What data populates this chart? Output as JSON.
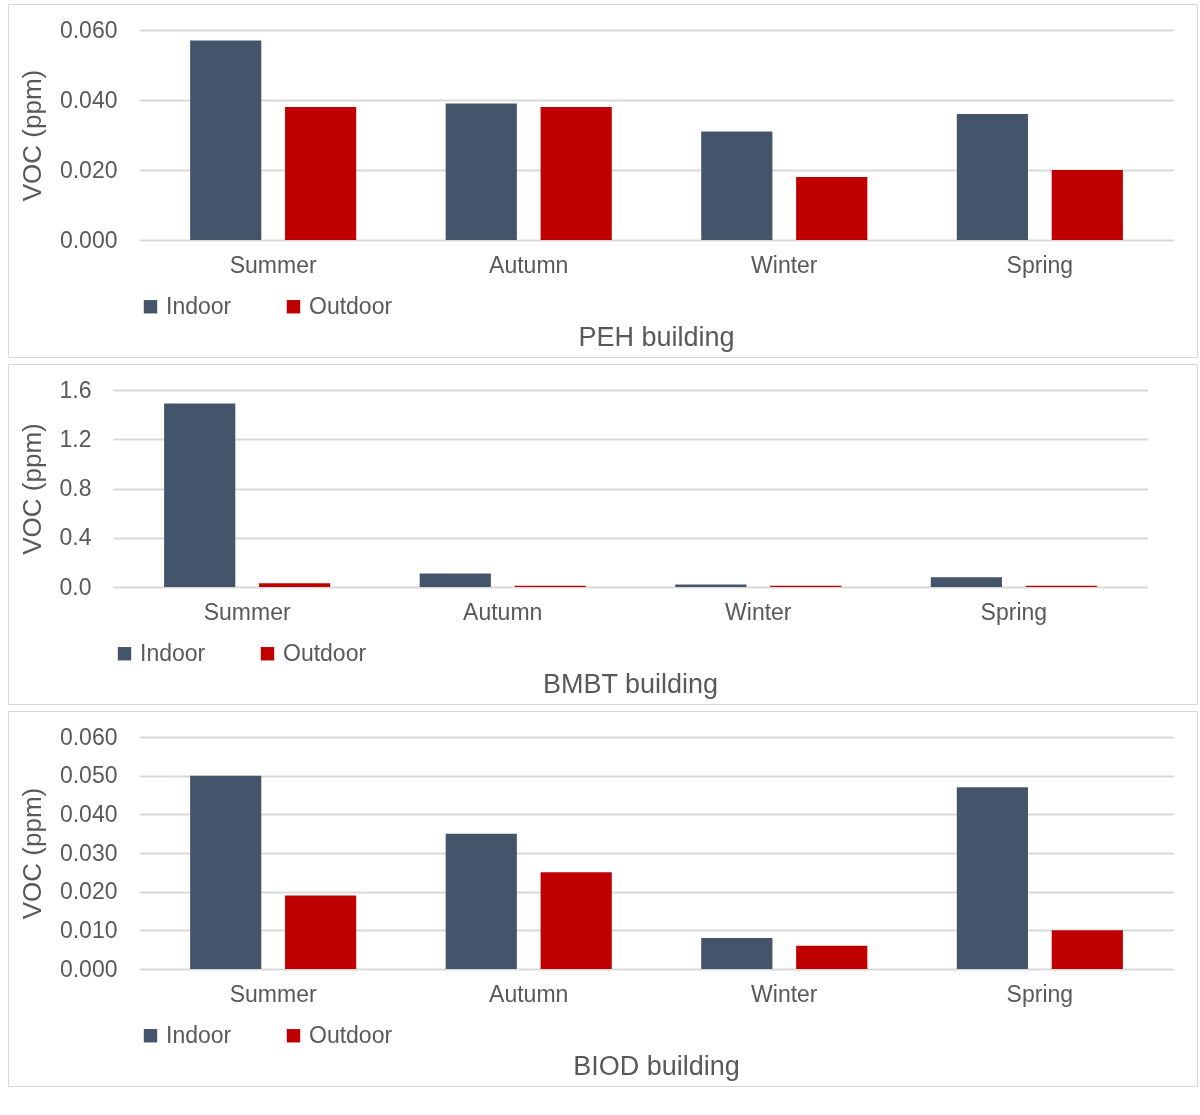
{
  "chart_data": [
    {
      "type": "bar",
      "title": "PEH building",
      "ylabel": "VOC (ppm)",
      "categories": [
        "Summer",
        "Autumn",
        "Winter",
        "Spring"
      ],
      "series": [
        {
          "name": "Indoor",
          "color": "#44546a",
          "values": [
            0.057,
            0.039,
            0.031,
            0.036
          ]
        },
        {
          "name": "Outdoor",
          "color": "#c00000",
          "values": [
            0.038,
            0.038,
            0.018,
            0.02
          ]
        }
      ],
      "ylim": [
        0,
        0.06
      ],
      "yticks": [
        {
          "value": 0,
          "label": "0.000"
        },
        {
          "value": 0.02,
          "label": "0.020"
        },
        {
          "value": 0.04,
          "label": "0.040"
        },
        {
          "value": 0.06,
          "label": "0.060"
        }
      ],
      "grid": "y",
      "legend": "bottom"
    },
    {
      "type": "bar",
      "title": "BMBT building",
      "ylabel": "VOC (ppm)",
      "categories": [
        "Summer",
        "Autumn",
        "Winter",
        "Spring"
      ],
      "series": [
        {
          "name": "Indoor",
          "color": "#44546a",
          "values": [
            1.49,
            0.11,
            0.02,
            0.08
          ]
        },
        {
          "name": "Outdoor",
          "color": "#c00000",
          "values": [
            0.03,
            0.01,
            0.01,
            0.01
          ]
        }
      ],
      "ylim": [
        0,
        1.6
      ],
      "yticks": [
        {
          "value": 0,
          "label": "0.0"
        },
        {
          "value": 0.4,
          "label": "0.4"
        },
        {
          "value": 0.8,
          "label": "0.8"
        },
        {
          "value": 1.2,
          "label": "1.2"
        },
        {
          "value": 1.6,
          "label": "1.6"
        }
      ],
      "grid": "y",
      "legend": "bottom"
    },
    {
      "type": "bar",
      "title": "BIOD building",
      "ylabel": "VOC (ppm)",
      "categories": [
        "Summer",
        "Autumn",
        "Winter",
        "Spring"
      ],
      "series": [
        {
          "name": "Indoor",
          "color": "#44546a",
          "values": [
            0.05,
            0.035,
            0.008,
            0.047
          ]
        },
        {
          "name": "Outdoor",
          "color": "#c00000",
          "values": [
            0.019,
            0.025,
            0.006,
            0.01
          ]
        }
      ],
      "ylim": [
        0,
        0.06
      ],
      "yticks": [
        {
          "value": 0,
          "label": "0.000"
        },
        {
          "value": 0.01,
          "label": "0.010"
        },
        {
          "value": 0.02,
          "label": "0.020"
        },
        {
          "value": 0.03,
          "label": "0.030"
        },
        {
          "value": 0.04,
          "label": "0.040"
        },
        {
          "value": 0.05,
          "label": "0.050"
        },
        {
          "value": 0.06,
          "label": "0.060"
        }
      ],
      "grid": "y",
      "legend": "bottom"
    }
  ]
}
